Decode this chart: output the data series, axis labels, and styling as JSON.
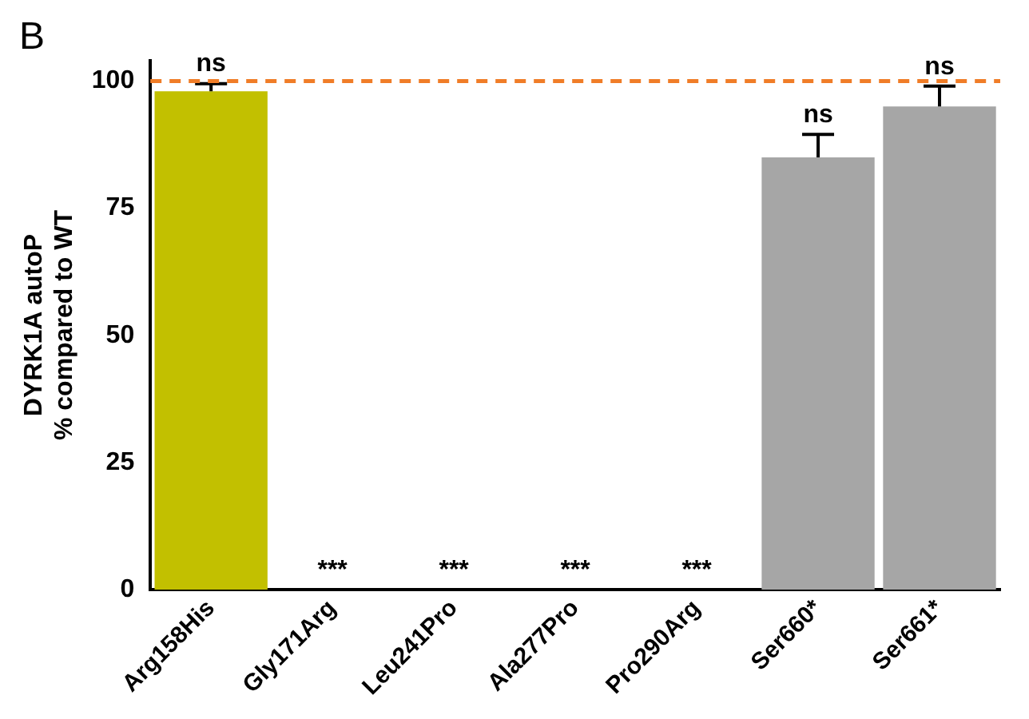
{
  "chart_data": {
    "type": "bar",
    "ylabel": "DYRK1A autoP\n% compared to WT",
    "categories": [
      "Arg158His",
      "Gly171Arg",
      "Leu241Pro",
      "Ala277Pro",
      "Pro290Arg",
      "Ser660*",
      "Ser661*"
    ],
    "values": [
      98,
      0,
      0,
      0,
      0,
      85,
      95
    ],
    "colors": [
      "#c2c000",
      "#a6a6a6",
      "#a6a6a6",
      "#a6a6a6",
      "#a6a6a6",
      "#a6a6a6",
      "#a6a6a6"
    ],
    "errors": [
      1.5,
      null,
      null,
      null,
      null,
      4.5,
      4
    ],
    "ylim": [
      0,
      104
    ],
    "yticks": [
      0,
      25,
      50,
      75,
      100
    ],
    "grid": false,
    "legend": false,
    "ref_lines": [
      {
        "axis": "y",
        "value": 100,
        "color": "#f07d28",
        "line_style": "dashed"
      }
    ],
    "annotations": [
      "B",
      {
        "text": "ns",
        "x": "Arg158His",
        "y": 99.5
      },
      {
        "text": "***",
        "x": "Gly171Arg",
        "y": 0
      },
      {
        "text": "***",
        "x": "Leu241Pro",
        "y": 0
      },
      {
        "text": "***",
        "x": "Ala277Pro",
        "y": 0
      },
      {
        "text": "***",
        "x": "Pro290Arg",
        "y": 0
      },
      {
        "text": "ns",
        "x": "Ser660*",
        "y": 89.5
      },
      {
        "text": "ns",
        "x": "Ser661*",
        "y": 99
      }
    ]
  }
}
